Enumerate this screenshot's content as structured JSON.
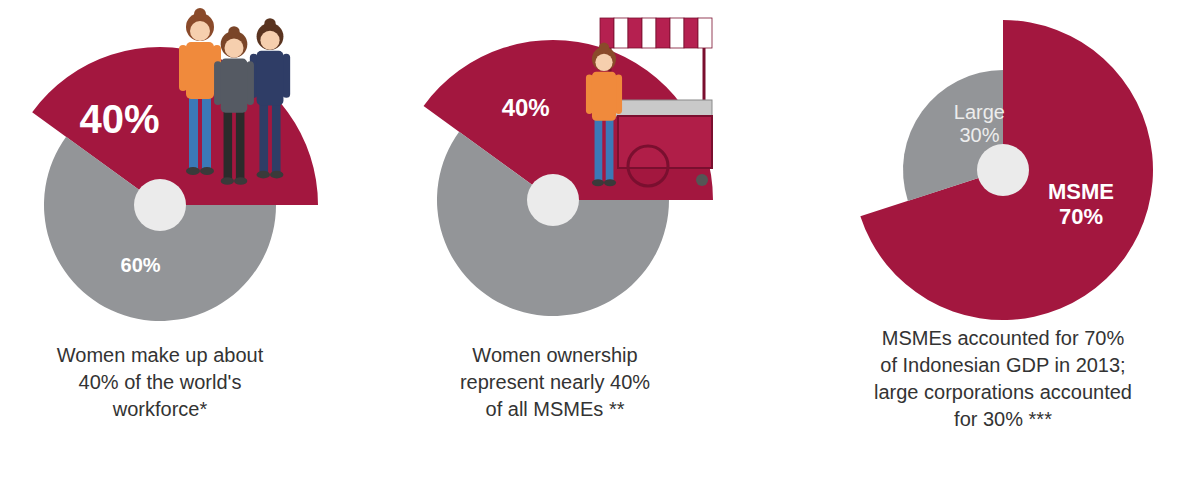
{
  "chart_data": [
    {
      "type": "pie",
      "title": "Women make up about 40% of the world's workforce*",
      "categories": [
        null,
        null
      ],
      "values": [
        40,
        60
      ],
      "colors": [
        "#a3173f",
        "#939598"
      ],
      "data_labels": true,
      "value_labels": [
        "40%",
        "60%"
      ]
    },
    {
      "type": "pie",
      "title": "Women ownership represent nearly 40% of all MSMEs **",
      "categories": [
        null,
        null
      ],
      "values": [
        40,
        60
      ],
      "colors": [
        "#a3173f",
        "#939598"
      ],
      "data_labels": true,
      "value_labels": [
        "40%",
        null
      ]
    },
    {
      "type": "pie",
      "title": "MSMEs accounted for 70% of Indonesian GDP in 2013; large corporations accounted for 30% ***",
      "categories": [
        "MSME",
        "Large"
      ],
      "values": [
        70,
        30
      ],
      "colors": [
        "#a3173f",
        "#939598"
      ],
      "data_labels": true,
      "value_labels": [
        "70%",
        "30%"
      ]
    }
  ]
}
